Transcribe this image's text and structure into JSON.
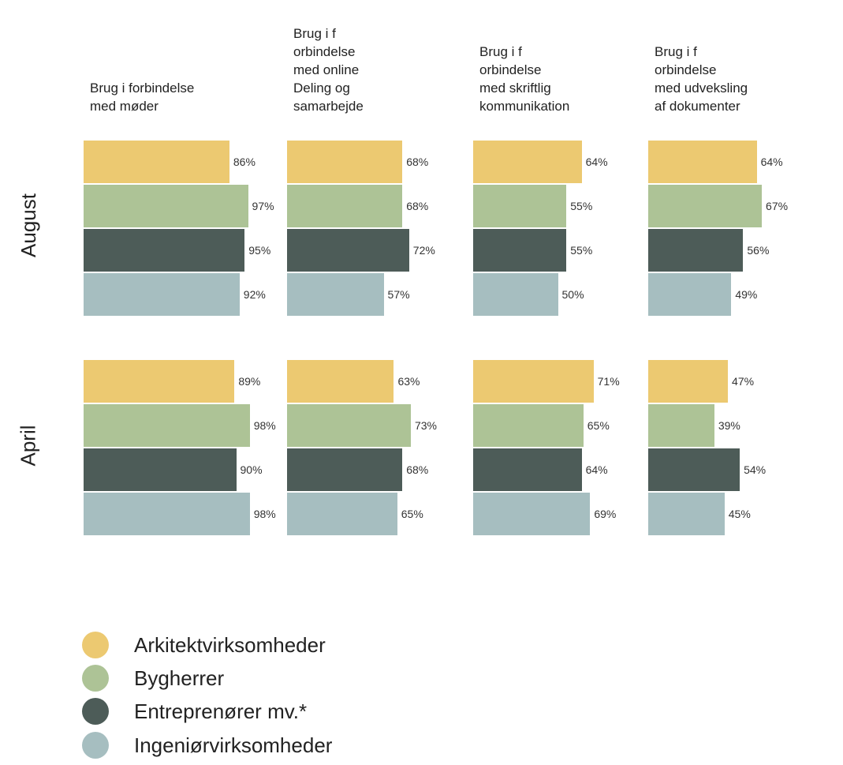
{
  "chart_data": {
    "type": "bar",
    "orientation": "horizontal",
    "panels": [
      {
        "title": "Brug i forbindelse\nmed møder"
      },
      {
        "title": "Brug i f\norbindelse\nmed online\nDeling og\nsamarbejde"
      },
      {
        "title": "Brug i f\norbindelse\nmed skriftlig\nkommunikation"
      },
      {
        "title": "Brug i f\norbindelse\nmed udveksling\naf dokumenter"
      }
    ],
    "rows": [
      "August",
      "April"
    ],
    "series": [
      {
        "name": "Arkitektvirksomheder",
        "color": "#ecc971"
      },
      {
        "name": "Bygherrer",
        "color": "#adc396"
      },
      {
        "name": "Entreprenører mv.*",
        "color": "#4d5c58"
      },
      {
        "name": "Ingeniørvirksomheder",
        "color": "#a6bec0"
      }
    ],
    "values": {
      "August": [
        [
          86,
          97,
          95,
          92
        ],
        [
          68,
          68,
          72,
          57
        ],
        [
          64,
          55,
          55,
          50
        ],
        [
          64,
          67,
          56,
          49
        ]
      ],
      "April": [
        [
          89,
          98,
          90,
          98
        ],
        [
          63,
          73,
          68,
          65
        ],
        [
          71,
          65,
          64,
          69
        ],
        [
          47,
          39,
          54,
          45
        ]
      ]
    },
    "value_suffix": "%",
    "xlim": [
      0,
      100
    ],
    "legend_position": "bottom-left"
  }
}
